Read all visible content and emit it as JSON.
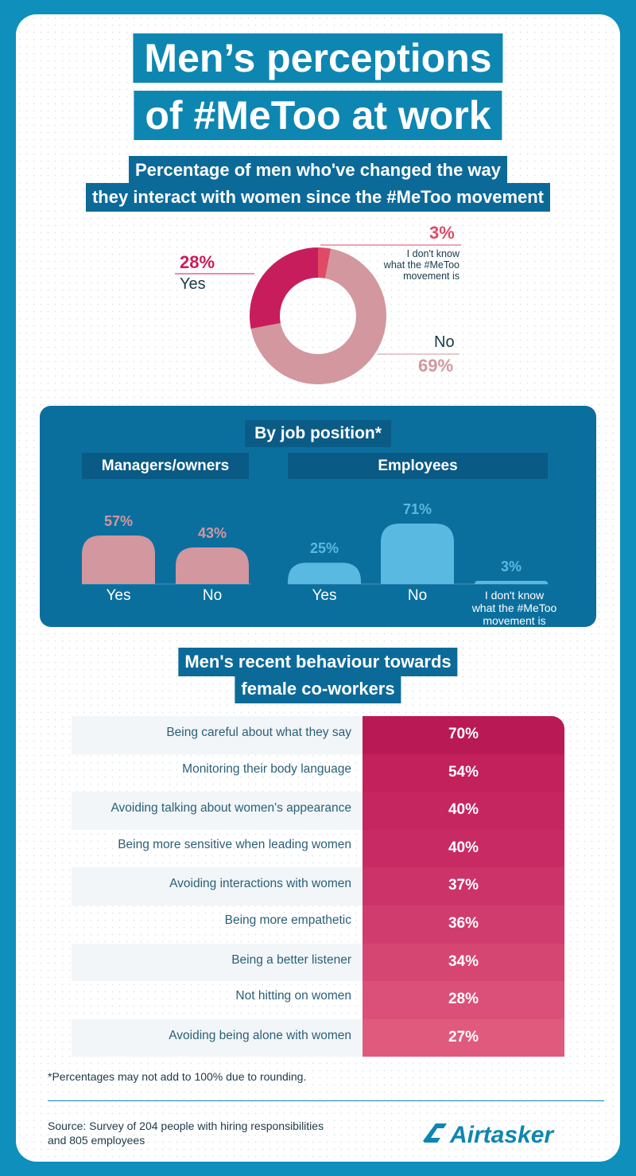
{
  "title": {
    "line1": "Men’s perceptions",
    "line2": "of #MeToo at work"
  },
  "colors": {
    "teal": "#0e86b2",
    "navy_panel": "#0b6f9e",
    "crimson": "#c81d5c",
    "rose": "#d2979f",
    "sky": "#5ab9e0"
  },
  "chart_data": [
    {
      "type": "pie",
      "title": "Percentage of men who've changed the way they interact with women since the #MeToo movement",
      "title_line1": "Percentage of men who've changed the way",
      "title_line2": "they interact with women since the #MeToo movement",
      "slices": [
        {
          "label": "I don't know what the #MeToo movement is",
          "label_lines": [
            "I don't know",
            "what the #MeToo",
            "movement is"
          ],
          "value": 3,
          "display": "3%",
          "color": "#e04a66"
        },
        {
          "label": "No",
          "value": 69,
          "display": "69%",
          "color": "#d2979f"
        },
        {
          "label": "Yes",
          "value": 28,
          "display": "28%",
          "color": "#c81d5c"
        }
      ]
    },
    {
      "type": "bar",
      "title": "By job position*",
      "groups": [
        {
          "name": "Managers/owners",
          "categories": [
            "Yes",
            "No"
          ],
          "values": [
            57,
            43
          ],
          "displays": [
            "57%",
            "43%"
          ],
          "color": "#d2979f"
        },
        {
          "name": "Employees",
          "categories": [
            "Yes",
            "No",
            "I don't know what the #MeToo movement is"
          ],
          "category_lines": [
            [
              "Yes"
            ],
            [
              "No"
            ],
            [
              "I don't know",
              "what the #MeToo",
              "movement is"
            ]
          ],
          "values": [
            25,
            71,
            3
          ],
          "displays": [
            "25%",
            "71%",
            "3%"
          ],
          "color": "#5ab9e0"
        }
      ]
    },
    {
      "type": "table",
      "title": "Men's recent behaviour towards female co-workers",
      "title_line1": "Men's recent behaviour towards",
      "title_line2": "female co-workers",
      "rows": [
        {
          "label": "Being careful about what they say",
          "value": 70,
          "display": "70%"
        },
        {
          "label": "Monitoring their body language",
          "value": 54,
          "display": "54%"
        },
        {
          "label": "Avoiding talking about women's appearance",
          "value": 40,
          "display": "40%"
        },
        {
          "label": "Being more sensitive when leading women",
          "value": 40,
          "display": "40%"
        },
        {
          "label": "Avoiding interactions with women",
          "value": 37,
          "display": "37%"
        },
        {
          "label": "Being more empathetic",
          "value": 36,
          "display": "36%"
        },
        {
          "label": "Being a better listener",
          "value": 34,
          "display": "34%"
        },
        {
          "label": "Not hitting on women",
          "value": 28,
          "display": "28%"
        },
        {
          "label": "Avoiding being alone with women",
          "value": 27,
          "display": "27%"
        }
      ]
    }
  ],
  "footnote": "*Percentages may not add to 100% due to rounding.",
  "source": {
    "line1": "Source: Survey of 204 people with hiring responsibilities",
    "line2": "and 805 employees"
  },
  "logo": {
    "text": "Airtasker"
  }
}
